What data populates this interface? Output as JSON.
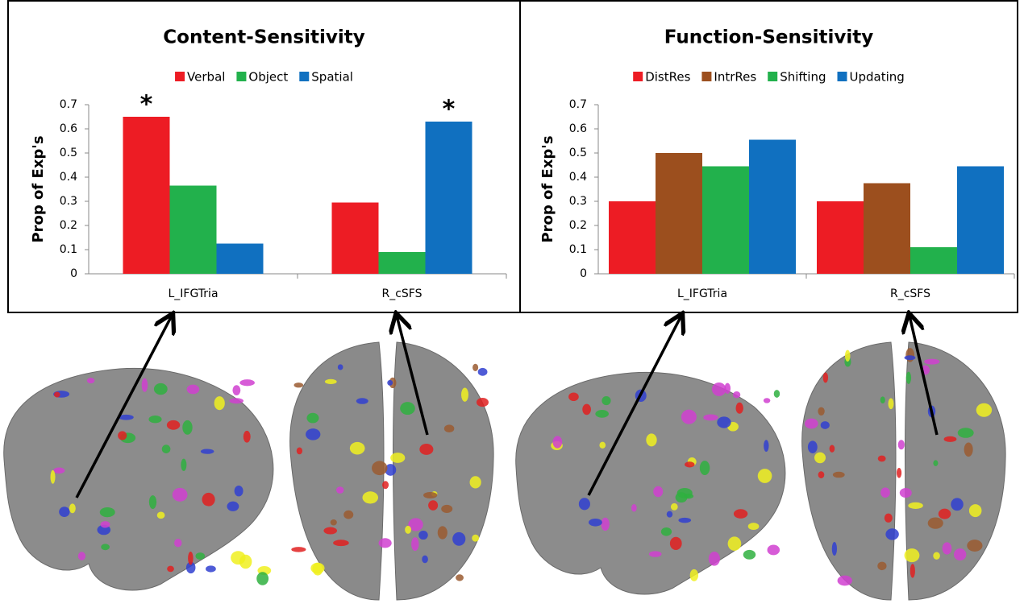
{
  "chart_data": [
    {
      "type": "bar",
      "title": "Content-Sensitivity",
      "y_label": "Prop of Exp's",
      "categories": [
        "L_IFGTria",
        "R_cSFS"
      ],
      "series": [
        {
          "name": "Verbal",
          "color": "#ed1c24",
          "values": [
            0.65,
            0.295
          ]
        },
        {
          "name": "Object",
          "color": "#22b14c",
          "values": [
            0.365,
            0.09
          ]
        },
        {
          "name": "Spatial",
          "color": "#1070c0",
          "values": [
            0.125,
            0.63
          ]
        }
      ],
      "annotations": [
        {
          "text": "*",
          "category": "L_IFGTria",
          "series": "Verbal"
        },
        {
          "text": "*",
          "category": "R_cSFS",
          "series": "Spatial"
        }
      ],
      "ylim": [
        0,
        0.7
      ],
      "yticks": [
        0,
        0.1,
        0.2,
        0.3,
        0.4,
        0.5,
        0.6,
        0.7
      ],
      "grid": false,
      "legend": "top"
    },
    {
      "type": "bar",
      "title": "Function-Sensitivity",
      "y_label": "Prop of Exp's",
      "categories": [
        "L_IFGTria",
        "R_cSFS"
      ],
      "series": [
        {
          "name": "DistRes",
          "color": "#ed1c24",
          "values": [
            0.3,
            0.3
          ]
        },
        {
          "name": "IntrRes",
          "color": "#9c4f1e",
          "values": [
            0.5,
            0.375
          ]
        },
        {
          "name": "Shifting",
          "color": "#22b14c",
          "values": [
            0.445,
            0.11
          ]
        },
        {
          "name": "Updating",
          "color": "#1070c0",
          "values": [
            0.555,
            0.445
          ]
        }
      ],
      "ylim": [
        0,
        0.7
      ],
      "yticks": [
        0,
        0.1,
        0.2,
        0.3,
        0.4,
        0.5,
        0.6,
        0.7
      ],
      "grid": false,
      "legend": "top"
    }
  ]
}
